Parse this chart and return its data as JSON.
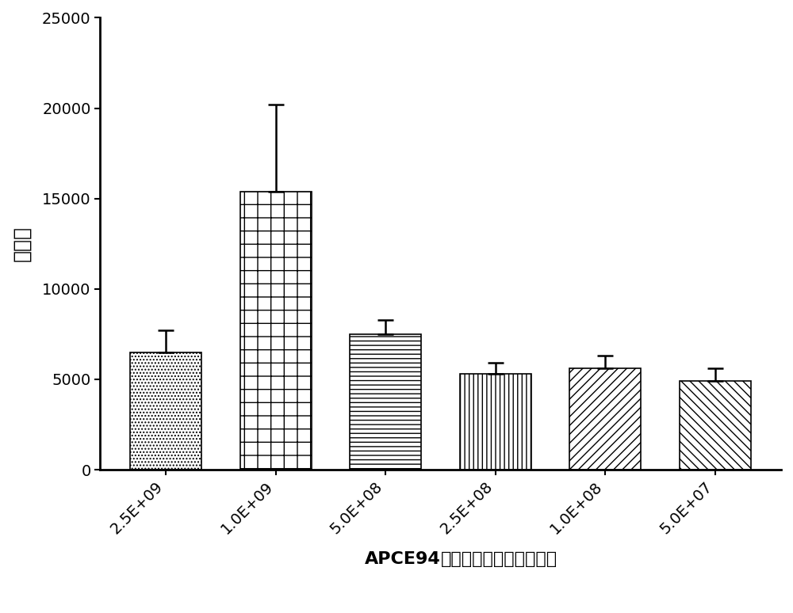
{
  "categories": [
    "2.5E+09",
    "1.0E+09",
    "5.0E+08",
    "2.5E+08",
    "1.0E+08",
    "5.0E+07"
  ],
  "values": [
    6500,
    15400,
    7500,
    5300,
    5600,
    4900
  ],
  "errors_upper": [
    1200,
    4800,
    800,
    600,
    700,
    700
  ],
  "errors_lower": [
    0,
    0,
    0,
    0,
    0,
    0
  ],
  "ylabel": "稀释度",
  "xlabel_bold": "APCE94",
  "xlabel_rest": "不同免疫剂量首二免效价",
  "ylim": [
    0,
    25000
  ],
  "yticks": [
    0,
    5000,
    10000,
    15000,
    20000,
    25000
  ],
  "bar_width": 0.65,
  "background_color": "#ffffff",
  "bar_edge_color": "#000000",
  "label_fontsize": 16,
  "tick_fontsize": 14,
  "ylabel_fontsize": 18
}
